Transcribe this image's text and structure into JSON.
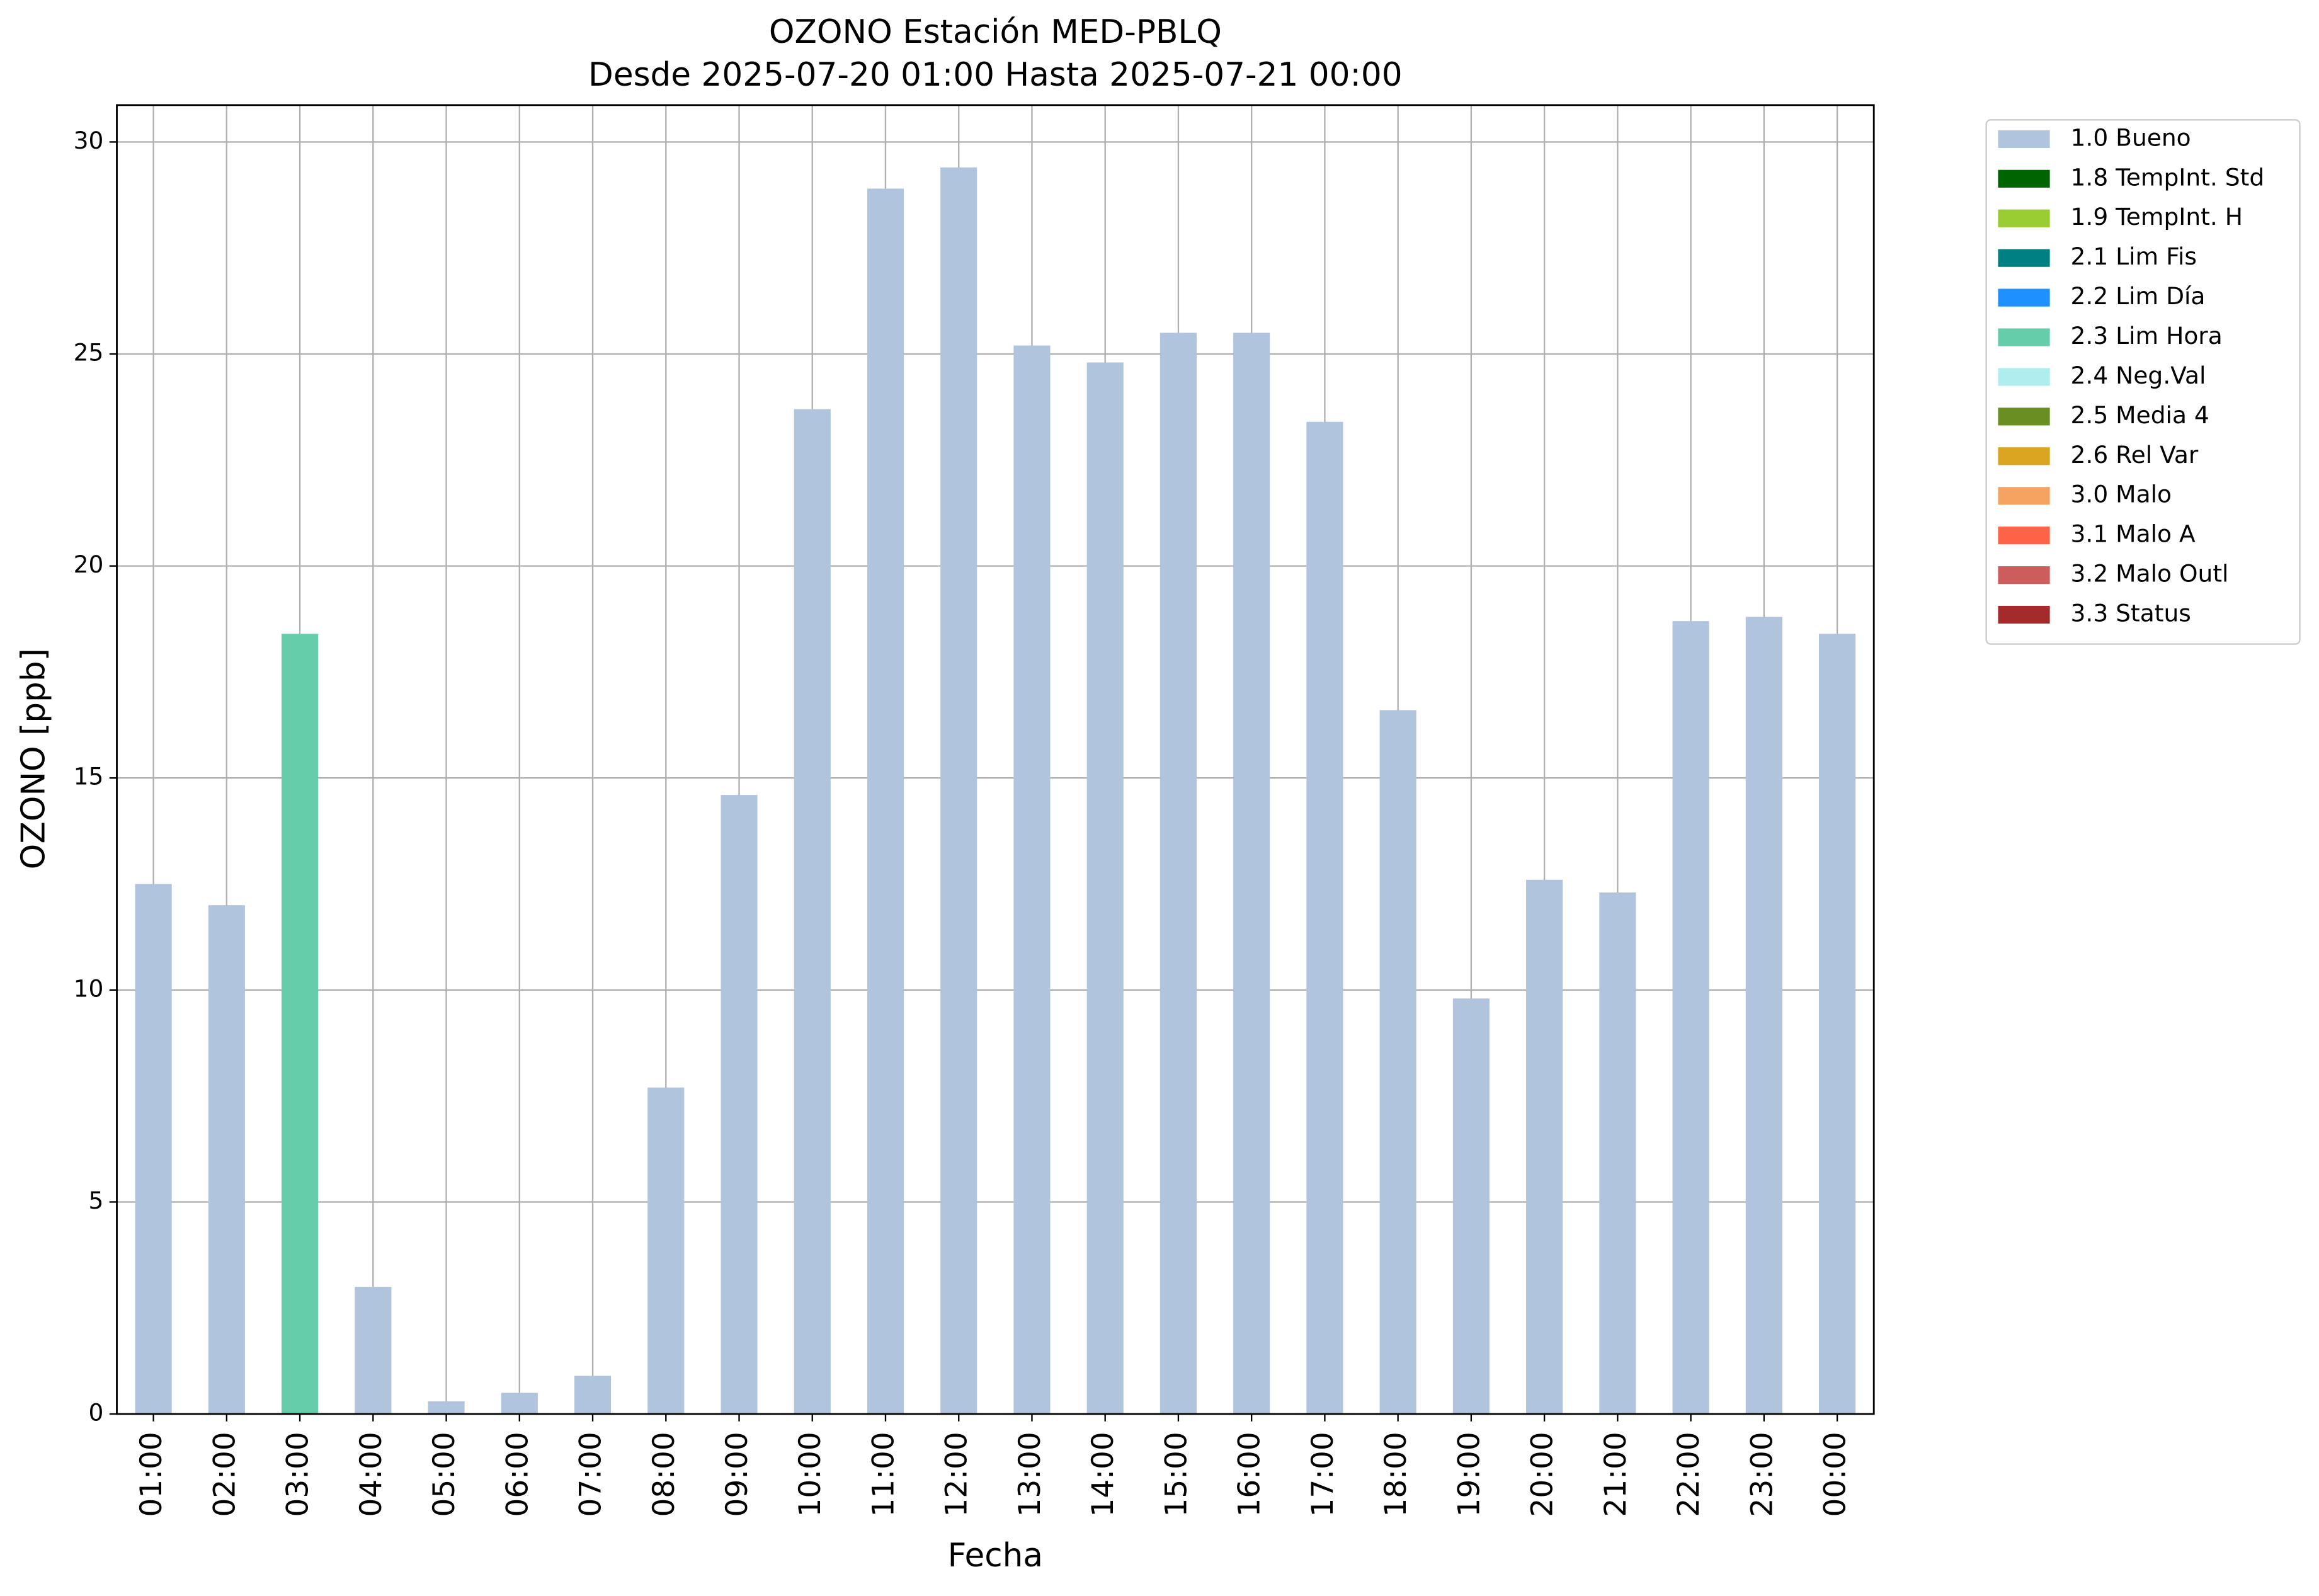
{
  "chart_data": {
    "type": "bar",
    "stacked": true,
    "title": "OZONO Estación MED-PBLQ",
    "subtitle": "Desde 2025-07-20 01:00 Hasta 2025-07-21 00:00",
    "x_label": "Fecha",
    "y_label": "OZONO [ppb]",
    "categories": [
      "01:00",
      "02:00",
      "03:00",
      "04:00",
      "05:00",
      "06:00",
      "07:00",
      "08:00",
      "09:00",
      "10:00",
      "11:00",
      "12:00",
      "13:00",
      "14:00",
      "15:00",
      "16:00",
      "17:00",
      "18:00",
      "19:00",
      "20:00",
      "21:00",
      "22:00",
      "23:00",
      "00:00"
    ],
    "series": [
      {
        "name": "1.0 Bueno",
        "color": "#b0c4de",
        "values": [
          12.5,
          12.0,
          null,
          3.0,
          0.3,
          0.5,
          0.9,
          7.7,
          14.6,
          23.7,
          28.9,
          29.4,
          25.2,
          24.8,
          25.5,
          25.5,
          23.4,
          16.6,
          9.8,
          12.6,
          12.3,
          18.7,
          18.8,
          18.4
        ]
      },
      {
        "name": "1.8 TempInt. Std",
        "color": "#006400",
        "values": [
          null,
          null,
          null,
          null,
          null,
          null,
          null,
          null,
          null,
          null,
          null,
          null,
          null,
          null,
          null,
          null,
          null,
          null,
          null,
          null,
          null,
          null,
          null,
          null
        ]
      },
      {
        "name": "1.9 TempInt. H",
        "color": "#9acd32",
        "values": [
          null,
          null,
          null,
          null,
          null,
          null,
          null,
          null,
          null,
          null,
          null,
          null,
          null,
          null,
          null,
          null,
          null,
          null,
          null,
          null,
          null,
          null,
          null,
          null
        ]
      },
      {
        "name": "2.1 Lim Fis",
        "color": "#008080",
        "values": [
          null,
          null,
          null,
          null,
          null,
          null,
          null,
          null,
          null,
          null,
          null,
          null,
          null,
          null,
          null,
          null,
          null,
          null,
          null,
          null,
          null,
          null,
          null,
          null
        ]
      },
      {
        "name": "2.2 Lim Día",
        "color": "#1e90ff",
        "values": [
          null,
          null,
          null,
          null,
          null,
          null,
          null,
          null,
          null,
          null,
          null,
          null,
          null,
          null,
          null,
          null,
          null,
          null,
          null,
          null,
          null,
          null,
          null,
          null
        ]
      },
      {
        "name": "2.3 Lim Hora",
        "color": "#66cdaa",
        "values": [
          null,
          null,
          18.4,
          null,
          null,
          null,
          null,
          null,
          null,
          null,
          null,
          null,
          null,
          null,
          null,
          null,
          null,
          null,
          null,
          null,
          null,
          null,
          null,
          null
        ]
      },
      {
        "name": "2.4 Neg.Val",
        "color": "#afeeee",
        "values": [
          null,
          null,
          null,
          null,
          null,
          null,
          null,
          null,
          null,
          null,
          null,
          null,
          null,
          null,
          null,
          null,
          null,
          null,
          null,
          null,
          null,
          null,
          null,
          null
        ]
      },
      {
        "name": "2.5 Media 4",
        "color": "#6b8e23",
        "values": [
          null,
          null,
          null,
          null,
          null,
          null,
          null,
          null,
          null,
          null,
          null,
          null,
          null,
          null,
          null,
          null,
          null,
          null,
          null,
          null,
          null,
          null,
          null,
          null
        ]
      },
      {
        "name": "2.6 Rel Var",
        "color": "#daa520",
        "values": [
          null,
          null,
          null,
          null,
          null,
          null,
          null,
          null,
          null,
          null,
          null,
          null,
          null,
          null,
          null,
          null,
          null,
          null,
          null,
          null,
          null,
          null,
          null,
          null
        ]
      },
      {
        "name": "3.0 Malo",
        "color": "#f4a460",
        "values": [
          null,
          null,
          null,
          null,
          null,
          null,
          null,
          null,
          null,
          null,
          null,
          null,
          null,
          null,
          null,
          null,
          null,
          null,
          null,
          null,
          null,
          null,
          null,
          null
        ]
      },
      {
        "name": "3.1 Malo A",
        "color": "#ff6347",
        "values": [
          null,
          null,
          null,
          null,
          null,
          null,
          null,
          null,
          null,
          null,
          null,
          null,
          null,
          null,
          null,
          null,
          null,
          null,
          null,
          null,
          null,
          null,
          null,
          null
        ]
      },
      {
        "name": "3.2 Malo Outl",
        "color": "#cd5c5c",
        "values": [
          null,
          null,
          null,
          null,
          null,
          null,
          null,
          null,
          null,
          null,
          null,
          null,
          null,
          null,
          null,
          null,
          null,
          null,
          null,
          null,
          null,
          null,
          null,
          null
        ]
      },
      {
        "name": "3.3 Status",
        "color": "#a52a2a",
        "values": [
          null,
          null,
          null,
          null,
          null,
          null,
          null,
          null,
          null,
          null,
          null,
          null,
          null,
          null,
          null,
          null,
          null,
          null,
          null,
          null,
          null,
          null,
          null,
          null
        ]
      }
    ],
    "ylim": [
      0,
      30.87
    ],
    "yticks": [
      0,
      5,
      10,
      15,
      20,
      25,
      30
    ],
    "grid": true,
    "legend": "outside-right"
  }
}
